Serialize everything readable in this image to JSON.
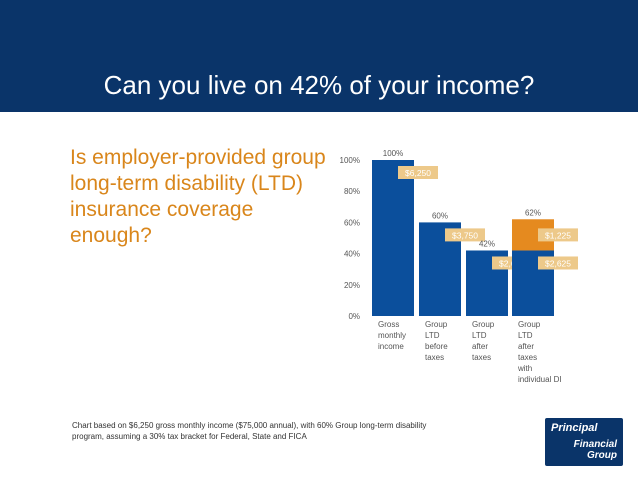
{
  "slide": {
    "title": "Can you live on 42% of your income?",
    "question": "Is employer-provided group long-term disability (LTD) insurance coverage enough?",
    "footnote": "Chart based on $6,250 gross monthly income ($75,000 annual), with 60% Group long-term disability program, assuming a 30% tax bracket for Federal, State and FICA"
  },
  "logo": {
    "line1": "Principal",
    "line2": "Financial",
    "line3": "Group"
  },
  "colors": {
    "header_bg": "#0a3469",
    "bar_blue": "#0b4f9c",
    "bar_orange": "#e58a1f",
    "label_tan": "#edc98a",
    "question_text": "#d9861b"
  },
  "chart_data": {
    "type": "bar",
    "categories": [
      [
        "Gross",
        "monthly",
        "income"
      ],
      [
        "Group",
        "LTD",
        "before",
        "taxes"
      ],
      [
        "Group",
        "LTD",
        "after",
        "taxes"
      ],
      [
        "Group",
        "LTD",
        "after",
        "taxes",
        "with",
        "individual DI"
      ]
    ],
    "percent_labels": [
      "100%",
      "60%",
      "42%",
      "62%"
    ],
    "ylim": [
      0,
      100
    ],
    "yticks": [
      "0%",
      "20%",
      "40%",
      "60%",
      "80%",
      "100%"
    ],
    "series": [
      {
        "values": [
          100,
          60,
          42,
          42
        ],
        "labels": [
          "$6,250",
          "$3,750",
          "$2,625",
          "$2,625"
        ]
      },
      {
        "values": [
          0,
          0,
          0,
          20
        ],
        "labels": [
          "",
          "",
          "",
          "$1,225"
        ]
      }
    ]
  }
}
